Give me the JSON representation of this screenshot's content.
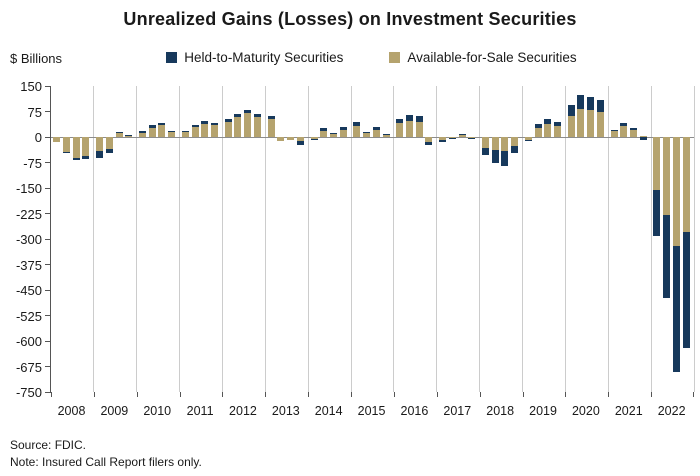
{
  "title": "Unrealized Gains (Losses) on Investment Securities",
  "y_axis_label": "$ Billions",
  "footer": {
    "source": "Source: FDIC.",
    "note": "Note: Insured Call Report filers only."
  },
  "colors": {
    "htm": "#17395c",
    "afs": "#b5a36e",
    "gridline": "#cccccc",
    "zero_line": "#8c8c8c",
    "axis": "#555555",
    "text": "#1a1a1a"
  },
  "chart_data": {
    "type": "bar",
    "stacked": true,
    "title": "Unrealized Gains (Losses) on Investment Securities",
    "ylabel": "$ Billions",
    "units": "$ Billions",
    "grid": "vertical-year-separators",
    "legend_position": "top-center",
    "ylim": [
      -750,
      150
    ],
    "y_ticks": [
      150,
      75,
      0,
      -75,
      -150,
      -225,
      -300,
      -375,
      -450,
      -525,
      -600,
      -675,
      -750
    ],
    "x_years": [
      "2008",
      "2009",
      "2010",
      "2011",
      "2012",
      "2013",
      "2014",
      "2015",
      "2016",
      "2017",
      "2018",
      "2019",
      "2020",
      "2021",
      "2022"
    ],
    "quarters_per_year": 4,
    "series": [
      {
        "name": "Held-to-Maturity Securities",
        "color": "#17395c",
        "values": [
          0,
          -2,
          -5,
          -10,
          -21,
          -14,
          3,
          1,
          5,
          7,
          8,
          2,
          3,
          6,
          8,
          6,
          9,
          9,
          10,
          9,
          9,
          0,
          0,
          -12,
          -3,
          10,
          2,
          9,
          10,
          2,
          8,
          1,
          12,
          17,
          17,
          -8,
          -6,
          -2,
          2,
          -3,
          -22,
          -38,
          -43,
          -21,
          -4,
          12,
          14,
          12,
          31,
          43,
          39,
          36,
          2,
          10,
          6,
          -10,
          -137,
          -245,
          -368,
          -341
        ]
      },
      {
        "name": "Available-for-Sale Securities",
        "color": "#b5a36e",
        "values": [
          -15,
          -44,
          -62,
          -56,
          -42,
          -34,
          11,
          5,
          12,
          27,
          34,
          16,
          15,
          28,
          39,
          35,
          45,
          59,
          70,
          59,
          52,
          -11,
          -10,
          -13,
          -6,
          17,
          11,
          21,
          33,
          12,
          20,
          8,
          40,
          48,
          44,
          -16,
          -9,
          -4,
          6,
          -4,
          -32,
          -39,
          -42,
          -26,
          -8,
          26,
          38,
          33,
          63,
          82,
          78,
          74,
          18,
          32,
          20,
          3,
          -155,
          -230,
          -322,
          -280
        ]
      }
    ]
  }
}
